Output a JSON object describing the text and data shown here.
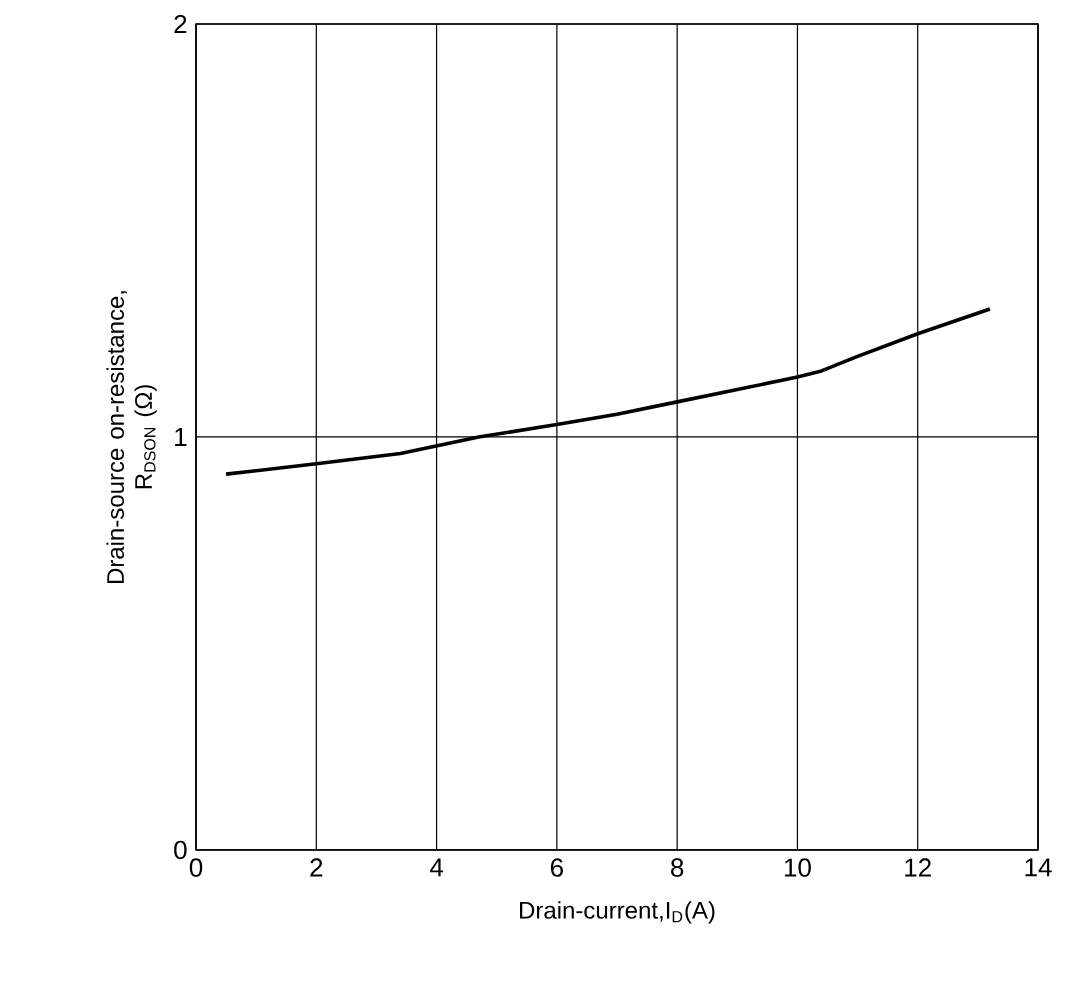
{
  "chart_data": {
    "type": "line",
    "xlabel": "Drain-current,I$_{D}$(A)",
    "ylabel": "Drain-source on-resistance,\nR$_{DSON}$ (Ω)",
    "xlim": [
      0,
      14
    ],
    "ylim": [
      0,
      2
    ],
    "xticks": [
      0,
      2,
      4,
      6,
      8,
      10,
      12,
      14
    ],
    "yticks": [
      0,
      1,
      2
    ],
    "grid": true,
    "series": [
      {
        "color": "#000000",
        "x": [
          0.5,
          2,
          3.4,
          4.7,
          6,
          7,
          8,
          9,
          10,
          10.4,
          11,
          12,
          13.2
        ],
        "values": [
          0.91,
          0.935,
          0.96,
          1.0,
          1.03,
          1.055,
          1.085,
          1.115,
          1.145,
          1.16,
          1.195,
          1.25,
          1.31
        ]
      }
    ]
  }
}
